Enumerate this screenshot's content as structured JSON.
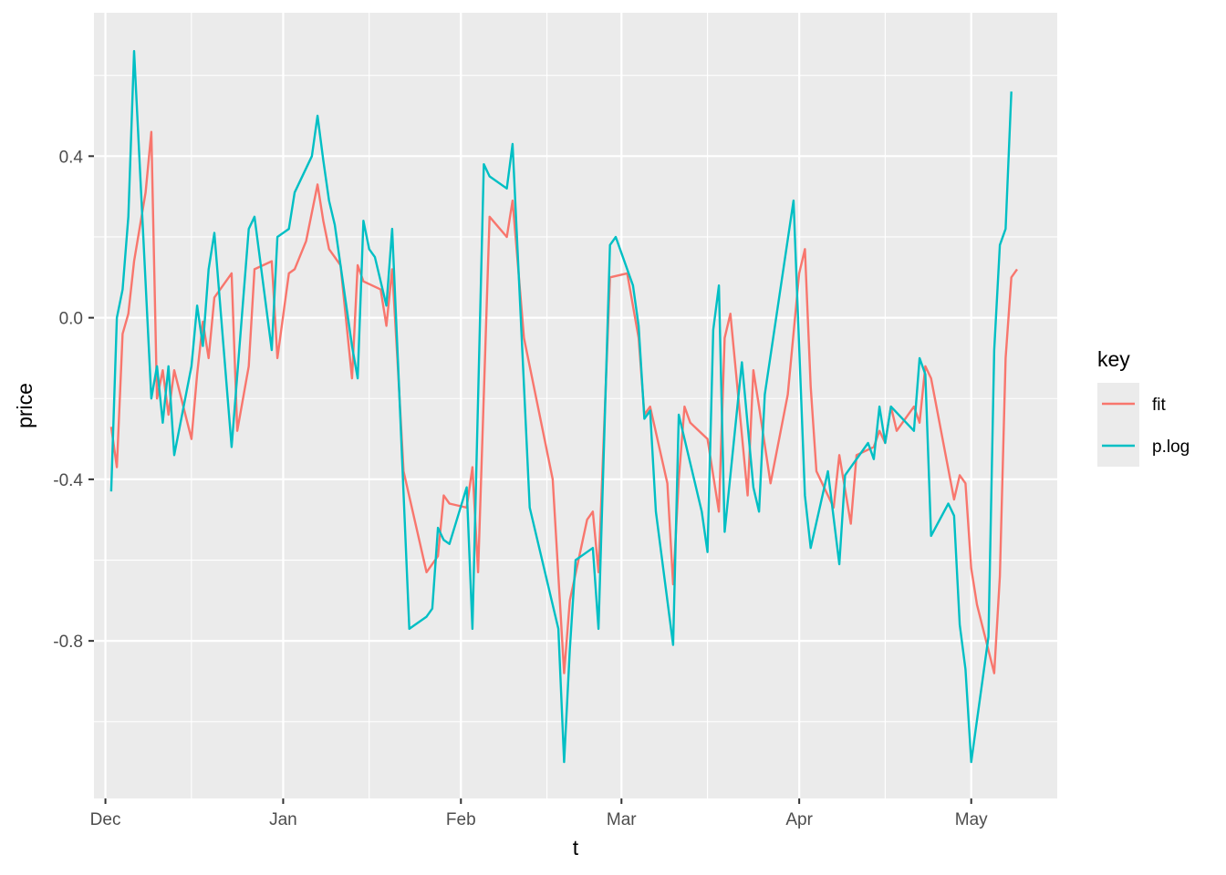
{
  "chart_data": {
    "type": "line",
    "title": "",
    "xlabel": "t",
    "ylabel": "price",
    "x_axis": {
      "type": "date",
      "range": [
        "2016-11-29",
        "2017-05-16"
      ],
      "ticks": [
        {
          "date": "2016-12-01",
          "label": "Dec"
        },
        {
          "date": "2017-01-01",
          "label": "Jan"
        },
        {
          "date": "2017-02-01",
          "label": "Feb"
        },
        {
          "date": "2017-03-01",
          "label": "Mar"
        },
        {
          "date": "2017-04-01",
          "label": "Apr"
        },
        {
          "date": "2017-05-01",
          "label": "May"
        }
      ],
      "minor_ticks": [
        "2016-12-16",
        "2017-01-16",
        "2017-02-16",
        "2017-03-16",
        "2017-04-16"
      ]
    },
    "y_axis": {
      "range": [
        -1.19,
        0.755
      ],
      "ticks": [
        {
          "value": 0.4,
          "label": "0.4"
        },
        {
          "value": 0.0,
          "label": "0.0"
        },
        {
          "value": -0.4,
          "label": "-0.4"
        },
        {
          "value": -0.8,
          "label": "-0.8"
        }
      ],
      "minor_ticks": [
        0.6,
        0.2,
        -0.2,
        -0.6,
        -1.0
      ]
    },
    "grid": true,
    "legend": {
      "title": "key",
      "position": "right"
    },
    "series": [
      {
        "name": "fit",
        "color": "#F8766D",
        "points": [
          [
            "2016-12-02",
            -0.27
          ],
          [
            "2016-12-03",
            -0.37
          ],
          [
            "2016-12-04",
            -0.04
          ],
          [
            "2016-12-05",
            0.01
          ],
          [
            "2016-12-06",
            0.14
          ],
          [
            "2016-12-08",
            0.31
          ],
          [
            "2016-12-09",
            0.46
          ],
          [
            "2016-12-10",
            -0.2
          ],
          [
            "2016-12-11",
            -0.13
          ],
          [
            "2016-12-12",
            -0.24
          ],
          [
            "2016-12-13",
            -0.13
          ],
          [
            "2016-12-16",
            -0.3
          ],
          [
            "2016-12-17",
            -0.14
          ],
          [
            "2016-12-18",
            -0.01
          ],
          [
            "2016-12-19",
            -0.1
          ],
          [
            "2016-12-20",
            0.05
          ],
          [
            "2016-12-23",
            0.11
          ],
          [
            "2016-12-24",
            -0.28
          ],
          [
            "2016-12-26",
            -0.12
          ],
          [
            "2016-12-27",
            0.12
          ],
          [
            "2016-12-30",
            0.14
          ],
          [
            "2016-12-31",
            -0.1
          ],
          [
            "2017-01-02",
            0.11
          ],
          [
            "2017-01-03",
            0.12
          ],
          [
            "2017-01-05",
            0.19
          ],
          [
            "2017-01-07",
            0.33
          ],
          [
            "2017-01-08",
            0.24
          ],
          [
            "2017-01-09",
            0.17
          ],
          [
            "2017-01-11",
            0.13
          ],
          [
            "2017-01-13",
            -0.15
          ],
          [
            "2017-01-14",
            0.13
          ],
          [
            "2017-01-15",
            0.09
          ],
          [
            "2017-01-18",
            0.07
          ],
          [
            "2017-01-19",
            -0.02
          ],
          [
            "2017-01-20",
            0.12
          ],
          [
            "2017-01-21",
            -0.12
          ],
          [
            "2017-01-22",
            -0.38
          ],
          [
            "2017-01-26",
            -0.63
          ],
          [
            "2017-01-28",
            -0.59
          ],
          [
            "2017-01-29",
            -0.44
          ],
          [
            "2017-01-30",
            -0.46
          ],
          [
            "2017-02-02",
            -0.47
          ],
          [
            "2017-02-03",
            -0.37
          ],
          [
            "2017-02-04",
            -0.63
          ],
          [
            "2017-02-06",
            0.25
          ],
          [
            "2017-02-09",
            0.2
          ],
          [
            "2017-02-10",
            0.29
          ],
          [
            "2017-02-12",
            -0.05
          ],
          [
            "2017-02-17",
            -0.4
          ],
          [
            "2017-02-19",
            -0.88
          ],
          [
            "2017-02-20",
            -0.7
          ],
          [
            "2017-02-23",
            -0.5
          ],
          [
            "2017-02-24",
            -0.48
          ],
          [
            "2017-02-25",
            -0.63
          ],
          [
            "2017-02-27",
            0.1
          ],
          [
            "2017-03-02",
            0.11
          ],
          [
            "2017-03-04",
            -0.05
          ],
          [
            "2017-03-05",
            -0.24
          ],
          [
            "2017-03-06",
            -0.22
          ],
          [
            "2017-03-09",
            -0.41
          ],
          [
            "2017-03-10",
            -0.66
          ],
          [
            "2017-03-11",
            -0.4
          ],
          [
            "2017-03-12",
            -0.22
          ],
          [
            "2017-03-13",
            -0.26
          ],
          [
            "2017-03-16",
            -0.3
          ],
          [
            "2017-03-18",
            -0.48
          ],
          [
            "2017-03-19",
            -0.05
          ],
          [
            "2017-03-20",
            0.01
          ],
          [
            "2017-03-23",
            -0.44
          ],
          [
            "2017-03-24",
            -0.13
          ],
          [
            "2017-03-25",
            -0.22
          ],
          [
            "2017-03-27",
            -0.41
          ],
          [
            "2017-03-30",
            -0.19
          ],
          [
            "2017-04-01",
            0.11
          ],
          [
            "2017-04-02",
            0.17
          ],
          [
            "2017-04-03",
            -0.17
          ],
          [
            "2017-04-04",
            -0.38
          ],
          [
            "2017-04-07",
            -0.47
          ],
          [
            "2017-04-08",
            -0.34
          ],
          [
            "2017-04-10",
            -0.51
          ],
          [
            "2017-04-11",
            -0.34
          ],
          [
            "2017-04-14",
            -0.32
          ],
          [
            "2017-04-15",
            -0.28
          ],
          [
            "2017-04-16",
            -0.31
          ],
          [
            "2017-04-17",
            -0.22
          ],
          [
            "2017-04-18",
            -0.28
          ],
          [
            "2017-04-21",
            -0.22
          ],
          [
            "2017-04-22",
            -0.26
          ],
          [
            "2017-04-23",
            -0.12
          ],
          [
            "2017-04-24",
            -0.15
          ],
          [
            "2017-04-28",
            -0.45
          ],
          [
            "2017-04-29",
            -0.39
          ],
          [
            "2017-04-30",
            -0.41
          ],
          [
            "2017-05-01",
            -0.62
          ],
          [
            "2017-05-02",
            -0.71
          ],
          [
            "2017-05-05",
            -0.88
          ],
          [
            "2017-05-06",
            -0.64
          ],
          [
            "2017-05-07",
            -0.1
          ],
          [
            "2017-05-08",
            0.1
          ],
          [
            "2017-05-09",
            0.12
          ]
        ]
      },
      {
        "name": "p.log",
        "color": "#00BFC4",
        "points": [
          [
            "2016-12-02",
            -0.43
          ],
          [
            "2016-12-03",
            0.0
          ],
          [
            "2016-12-04",
            0.07
          ],
          [
            "2016-12-05",
            0.25
          ],
          [
            "2016-12-06",
            0.66
          ],
          [
            "2016-12-09",
            -0.2
          ],
          [
            "2016-12-10",
            -0.12
          ],
          [
            "2016-12-11",
            -0.26
          ],
          [
            "2016-12-12",
            -0.12
          ],
          [
            "2016-12-13",
            -0.34
          ],
          [
            "2016-12-16",
            -0.12
          ],
          [
            "2016-12-17",
            0.03
          ],
          [
            "2016-12-18",
            -0.07
          ],
          [
            "2016-12-19",
            0.12
          ],
          [
            "2016-12-20",
            0.21
          ],
          [
            "2016-12-23",
            -0.32
          ],
          [
            "2016-12-26",
            0.22
          ],
          [
            "2016-12-27",
            0.25
          ],
          [
            "2016-12-30",
            -0.08
          ],
          [
            "2016-12-31",
            0.2
          ],
          [
            "2017-01-02",
            0.22
          ],
          [
            "2017-01-03",
            0.31
          ],
          [
            "2017-01-06",
            0.4
          ],
          [
            "2017-01-07",
            0.5
          ],
          [
            "2017-01-08",
            0.39
          ],
          [
            "2017-01-09",
            0.29
          ],
          [
            "2017-01-10",
            0.23
          ],
          [
            "2017-01-13",
            -0.07
          ],
          [
            "2017-01-14",
            -0.15
          ],
          [
            "2017-01-15",
            0.24
          ],
          [
            "2017-01-16",
            0.17
          ],
          [
            "2017-01-17",
            0.15
          ],
          [
            "2017-01-19",
            0.03
          ],
          [
            "2017-01-20",
            0.22
          ],
          [
            "2017-01-21",
            -0.1
          ],
          [
            "2017-01-23",
            -0.77
          ],
          [
            "2017-01-26",
            -0.74
          ],
          [
            "2017-01-27",
            -0.72
          ],
          [
            "2017-01-28",
            -0.52
          ],
          [
            "2017-01-29",
            -0.55
          ],
          [
            "2017-01-30",
            -0.56
          ],
          [
            "2017-02-02",
            -0.42
          ],
          [
            "2017-02-03",
            -0.77
          ],
          [
            "2017-02-05",
            0.38
          ],
          [
            "2017-02-06",
            0.35
          ],
          [
            "2017-02-09",
            0.32
          ],
          [
            "2017-02-10",
            0.43
          ],
          [
            "2017-02-13",
            -0.47
          ],
          [
            "2017-02-18",
            -0.77
          ],
          [
            "2017-02-19",
            -1.1
          ],
          [
            "2017-02-20",
            -0.82
          ],
          [
            "2017-02-21",
            -0.6
          ],
          [
            "2017-02-24",
            -0.57
          ],
          [
            "2017-02-25",
            -0.77
          ],
          [
            "2017-02-27",
            0.18
          ],
          [
            "2017-02-28",
            0.2
          ],
          [
            "2017-03-03",
            0.08
          ],
          [
            "2017-03-04",
            -0.02
          ],
          [
            "2017-03-05",
            -0.25
          ],
          [
            "2017-03-06",
            -0.23
          ],
          [
            "2017-03-07",
            -0.48
          ],
          [
            "2017-03-10",
            -0.81
          ],
          [
            "2017-03-11",
            -0.24
          ],
          [
            "2017-03-15",
            -0.48
          ],
          [
            "2017-03-16",
            -0.58
          ],
          [
            "2017-03-17",
            -0.03
          ],
          [
            "2017-03-18",
            0.08
          ],
          [
            "2017-03-19",
            -0.53
          ],
          [
            "2017-03-22",
            -0.11
          ],
          [
            "2017-03-24",
            -0.42
          ],
          [
            "2017-03-25",
            -0.48
          ],
          [
            "2017-03-26",
            -0.19
          ],
          [
            "2017-03-31",
            0.29
          ],
          [
            "2017-04-02",
            -0.44
          ],
          [
            "2017-04-03",
            -0.57
          ],
          [
            "2017-04-06",
            -0.38
          ],
          [
            "2017-04-08",
            -0.61
          ],
          [
            "2017-04-09",
            -0.39
          ],
          [
            "2017-04-13",
            -0.31
          ],
          [
            "2017-04-14",
            -0.35
          ],
          [
            "2017-04-15",
            -0.22
          ],
          [
            "2017-04-16",
            -0.31
          ],
          [
            "2017-04-17",
            -0.22
          ],
          [
            "2017-04-21",
            -0.28
          ],
          [
            "2017-04-22",
            -0.1
          ],
          [
            "2017-04-23",
            -0.14
          ],
          [
            "2017-04-24",
            -0.54
          ],
          [
            "2017-04-27",
            -0.46
          ],
          [
            "2017-04-28",
            -0.49
          ],
          [
            "2017-04-29",
            -0.76
          ],
          [
            "2017-04-30",
            -0.87
          ],
          [
            "2017-05-01",
            -1.1
          ],
          [
            "2017-05-04",
            -0.79
          ],
          [
            "2017-05-05",
            -0.08
          ],
          [
            "2017-05-06",
            0.18
          ],
          [
            "2017-05-07",
            0.22
          ],
          [
            "2017-05-08",
            0.56
          ]
        ]
      }
    ]
  }
}
